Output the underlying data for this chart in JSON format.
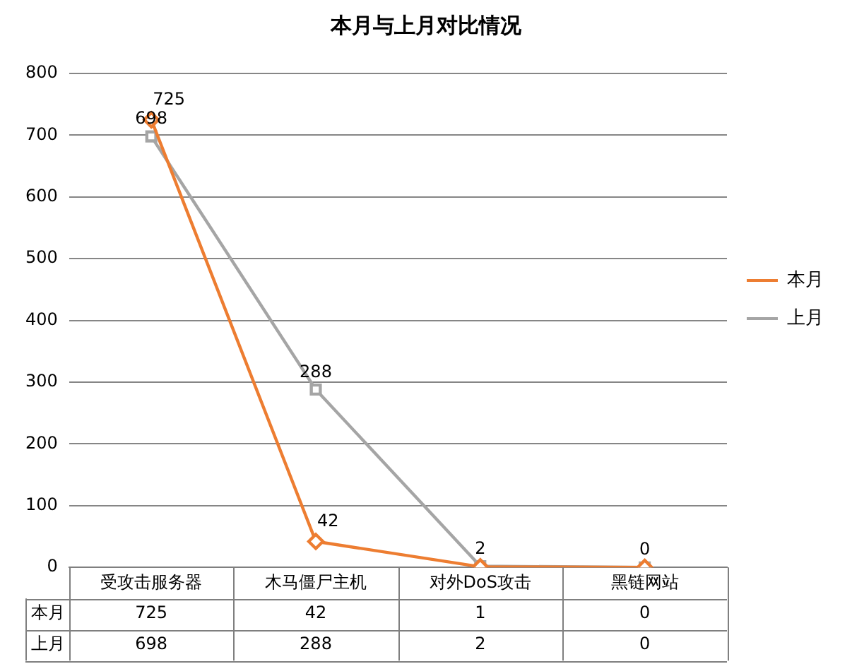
{
  "chart_data": {
    "type": "line",
    "title": "本月与上月对比情况",
    "categories": [
      "受攻击服务器",
      "木马僵尸主机",
      "对外DoS攻击",
      "黑链网站"
    ],
    "series": [
      {
        "name": "本月",
        "color": "#ed7d31",
        "values": [
          725,
          42,
          1,
          0
        ],
        "value_labels": [
          "725",
          "42",
          null,
          null
        ],
        "marker": "diamond"
      },
      {
        "name": "上月",
        "color": "#a5a5a5",
        "values": [
          698,
          288,
          2,
          0
        ],
        "value_labels": [
          "698",
          "288",
          "2",
          "0"
        ],
        "marker": "square"
      }
    ],
    "ylim": [
      0,
      800
    ],
    "yticks": [
      0,
      100,
      200,
      300,
      400,
      500,
      600,
      700,
      800
    ],
    "annotations": [
      "725",
      "42",
      "1",
      "0",
      "698",
      "288",
      "2",
      "0"
    ],
    "grid": "y",
    "legend": "right",
    "line_style": "solid"
  }
}
